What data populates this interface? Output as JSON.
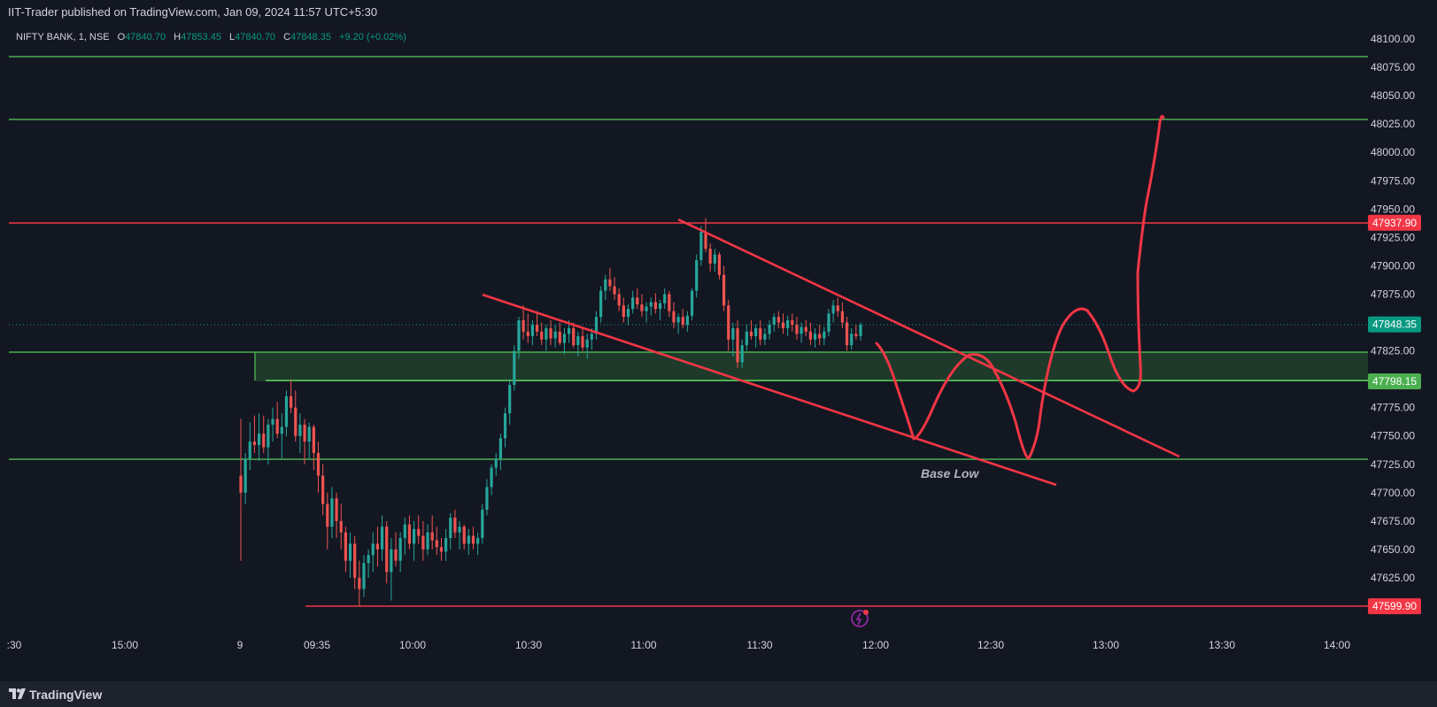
{
  "header": {
    "publisher": "IIT-Trader published on TradingView.com, Jan 09, 2024 11:57 UTC+5:30"
  },
  "legend": {
    "symbol": "NIFTY BANK, 1, NSE",
    "o_label": "O",
    "o_value": "47840.70",
    "h_label": "H",
    "h_value": "47853.45",
    "l_label": "L",
    "l_value": "47840.70",
    "c_label": "C",
    "c_value": "47848.35",
    "change": "+9.20 (+0.02%)"
  },
  "footer": {
    "brand": "TradingView"
  },
  "colors": {
    "background": "#131722",
    "up": "#26a69a",
    "down": "#ef5350",
    "support_line": "#4caf50",
    "resistance_line": "#f23645",
    "drawing": "#f23645",
    "zone_fill": "#1f3a2a"
  },
  "chart_data": {
    "type": "candlestick",
    "symbol": "NIFTY BANK",
    "interval": "1",
    "exchange": "NSE",
    "y_axis": {
      "range": [
        47575,
        48115
      ],
      "ticks": [
        "48100.00",
        "48075.00",
        "48050.00",
        "48025.00",
        "48000.00",
        "47975.00",
        "47950.00",
        "47925.00",
        "47900.00",
        "47875.00",
        "47850.00",
        "47825.00",
        "47800.00",
        "47775.00",
        "47750.00",
        "47725.00",
        "47700.00",
        "47675.00",
        "47650.00",
        "47625.00"
      ]
    },
    "x_axis": {
      "ticks": [
        ":30",
        "15:00",
        "9",
        "09:35",
        "10:00",
        "10:30",
        "11:00",
        "11:30",
        "12:00",
        "12:30",
        "13:00",
        "13:30",
        "14:00"
      ]
    },
    "price_labels": [
      {
        "value": "47937.90",
        "color": "#f23645"
      },
      {
        "value": "47848.35",
        "color": "#089981"
      },
      {
        "value": "47798.15",
        "color": "#4caf50"
      },
      {
        "value": "47599.90",
        "color": "#f23645"
      }
    ],
    "horizontal_levels": [
      {
        "price": 48088,
        "color": "green"
      },
      {
        "price": 48029,
        "color": "green"
      },
      {
        "price": 47937.9,
        "color": "red"
      },
      {
        "price": 47728,
        "color": "green"
      },
      {
        "price": 47599.9,
        "color": "red"
      }
    ],
    "zone": {
      "top": 47824,
      "bottom": 47799
    },
    "last_price": 47848.35,
    "candles": [
      [
        47715,
        47765,
        47640,
        47700
      ],
      [
        47700,
        47735,
        47690,
        47730
      ],
      [
        47730,
        47762,
        47720,
        47745
      ],
      [
        47745,
        47768,
        47735,
        47742
      ],
      [
        47742,
        47770,
        47728,
        47752
      ],
      [
        47752,
        47768,
        47735,
        47740
      ],
      [
        47740,
        47765,
        47725,
        47760
      ],
      [
        47760,
        47775,
        47745,
        47765
      ],
      [
        47765,
        47780,
        47748,
        47752
      ],
      [
        47752,
        47770,
        47730,
        47758
      ],
      [
        47758,
        47790,
        47750,
        47785
      ],
      [
        47785,
        47800,
        47770,
        47775
      ],
      [
        47775,
        47790,
        47745,
        47750
      ],
      [
        47750,
        47770,
        47735,
        47760
      ],
      [
        47760,
        47765,
        47725,
        47745
      ],
      [
        47745,
        47762,
        47730,
        47758
      ],
      [
        47758,
        47760,
        47720,
        47735
      ],
      [
        47735,
        47745,
        47700,
        47715
      ],
      [
        47715,
        47725,
        47680,
        47690
      ],
      [
        47690,
        47700,
        47650,
        47670
      ],
      [
        47670,
        47705,
        47660,
        47695
      ],
      [
        47695,
        47700,
        47660,
        47675
      ],
      [
        47675,
        47690,
        47650,
        47665
      ],
      [
        47665,
        47670,
        47630,
        47640
      ],
      [
        47640,
        47665,
        47625,
        47655
      ],
      [
        47655,
        47662,
        47615,
        47625
      ],
      [
        47625,
        47640,
        47600,
        47615
      ],
      [
        47615,
        47645,
        47608,
        47638
      ],
      [
        47638,
        47650,
        47625,
        47645
      ],
      [
        47645,
        47665,
        47630,
        47655
      ],
      [
        47655,
        47670,
        47635,
        47650
      ],
      [
        47650,
        47680,
        47640,
        47670
      ],
      [
        47670,
        47675,
        47620,
        47630
      ],
      [
        47630,
        47660,
        47605,
        47650
      ],
      [
        47650,
        47665,
        47635,
        47640
      ],
      [
        47640,
        47665,
        47630,
        47660
      ],
      [
        47660,
        47678,
        47645,
        47672
      ],
      [
        47672,
        47680,
        47650,
        47655
      ],
      [
        47655,
        47675,
        47640,
        47668
      ],
      [
        47668,
        47680,
        47655,
        47662
      ],
      [
        47662,
        47675,
        47640,
        47650
      ],
      [
        47650,
        47672,
        47645,
        47665
      ],
      [
        47665,
        47680,
        47650,
        47658
      ],
      [
        47658,
        47670,
        47645,
        47652
      ],
      [
        47652,
        47660,
        47640,
        47648
      ],
      [
        47648,
        47668,
        47640,
        47660
      ],
      [
        47660,
        47682,
        47650,
        47678
      ],
      [
        47678,
        47685,
        47660,
        47665
      ],
      [
        47665,
        47675,
        47650,
        47670
      ],
      [
        47670,
        47672,
        47650,
        47655
      ],
      [
        47655,
        47668,
        47645,
        47662
      ],
      [
        47662,
        47670,
        47650,
        47655
      ],
      [
        47655,
        47665,
        47645,
        47660
      ],
      [
        47660,
        47690,
        47655,
        47685
      ],
      [
        47685,
        47712,
        47680,
        47705
      ],
      [
        47705,
        47725,
        47698,
        47722
      ],
      [
        47722,
        47735,
        47715,
        47730
      ],
      [
        47730,
        47752,
        47720,
        47748
      ],
      [
        47748,
        47775,
        47740,
        47770
      ],
      [
        47770,
        47800,
        47760,
        47795
      ],
      [
        47795,
        47830,
        47790,
        47825
      ],
      [
        47825,
        47855,
        47818,
        47852
      ],
      [
        47852,
        47865,
        47835,
        47842
      ],
      [
        47842,
        47858,
        47832,
        47838
      ],
      [
        47838,
        47852,
        47830,
        47848
      ],
      [
        47848,
        47860,
        47838,
        47842
      ],
      [
        47842,
        47850,
        47830,
        47835
      ],
      [
        47835,
        47848,
        47825,
        47845
      ],
      [
        47845,
        47852,
        47830,
        47836
      ],
      [
        47836,
        47848,
        47828,
        47842
      ],
      [
        47842,
        47850,
        47830,
        47832
      ],
      [
        47832,
        47845,
        47822,
        47840
      ],
      [
        47840,
        47852,
        47832,
        47845
      ],
      [
        47845,
        47850,
        47828,
        47830
      ],
      [
        47830,
        47842,
        47820,
        47838
      ],
      [
        47838,
        47845,
        47825,
        47828
      ],
      [
        47828,
        47840,
        47818,
        47835
      ],
      [
        47835,
        47845,
        47826,
        47840
      ],
      [
        47840,
        47860,
        47835,
        47855
      ],
      [
        47855,
        47882,
        47850,
        47878
      ],
      [
        47878,
        47892,
        47870,
        47888
      ],
      [
        47888,
        47898,
        47878,
        47882
      ],
      [
        47882,
        47890,
        47870,
        47875
      ],
      [
        47875,
        47880,
        47860,
        47865
      ],
      [
        47865,
        47872,
        47850,
        47855
      ],
      [
        47855,
        47866,
        47848,
        47862
      ],
      [
        47862,
        47878,
        47858,
        47872
      ],
      [
        47872,
        47880,
        47862,
        47866
      ],
      [
        47866,
        47875,
        47855,
        47860
      ],
      [
        47860,
        47868,
        47850,
        47864
      ],
      [
        47864,
        47872,
        47856,
        47868
      ],
      [
        47868,
        47876,
        47858,
        47862
      ],
      [
        47862,
        47870,
        47852,
        47867
      ],
      [
        47867,
        47880,
        47862,
        47875
      ],
      [
        47875,
        47878,
        47855,
        47860
      ],
      [
        47860,
        47868,
        47845,
        47850
      ],
      [
        47850,
        47858,
        47840,
        47855
      ],
      [
        47855,
        47862,
        47845,
        47848
      ],
      [
        47848,
        47860,
        47842,
        47856
      ],
      [
        47856,
        47880,
        47852,
        47878
      ],
      [
        47878,
        47910,
        47872,
        47905
      ],
      [
        47905,
        47935,
        47900,
        47930
      ],
      [
        47930,
        47942,
        47912,
        47915
      ],
      [
        47915,
        47920,
        47895,
        47902
      ],
      [
        47902,
        47915,
        47895,
        47910
      ],
      [
        47910,
        47912,
        47888,
        47892
      ],
      [
        47892,
        47900,
        47860,
        47865
      ],
      [
        47865,
        47870,
        47825,
        47835
      ],
      [
        47835,
        47850,
        47820,
        47845
      ],
      [
        47845,
        47852,
        47810,
        47815
      ],
      [
        47815,
        47835,
        47810,
        47830
      ],
      [
        47830,
        47848,
        47825,
        47842
      ],
      [
        47842,
        47852,
        47835,
        47838
      ],
      [
        47838,
        47848,
        47828,
        47845
      ],
      [
        47845,
        47852,
        47830,
        47835
      ],
      [
        47835,
        47845,
        47830,
        47840
      ],
      [
        47840,
        47852,
        47835,
        47848
      ],
      [
        47848,
        47858,
        47842,
        47855
      ],
      [
        47855,
        47860,
        47845,
        47850
      ],
      [
        47850,
        47858,
        47840,
        47845
      ],
      [
        47845,
        47856,
        47838,
        47852
      ],
      [
        47852,
        47858,
        47842,
        47848
      ],
      [
        47848,
        47855,
        47835,
        47840
      ],
      [
        47840,
        47850,
        47832,
        47846
      ],
      [
        47846,
        47852,
        47838,
        47842
      ],
      [
        47842,
        47850,
        47830,
        47835
      ],
      [
        47835,
        47845,
        47828,
        47840
      ],
      [
        47840,
        47848,
        47830,
        47836
      ],
      [
        47836,
        47846,
        47830,
        47842
      ],
      [
        47842,
        47862,
        47838,
        47858
      ],
      [
        47858,
        47870,
        47850,
        47865
      ],
      [
        47865,
        47872,
        47855,
        47860
      ],
      [
        47860,
        47868,
        47845,
        47850
      ],
      [
        47850,
        47855,
        47825,
        47830
      ],
      [
        47830,
        47845,
        47826,
        47840
      ],
      [
        47840,
        47848,
        47835,
        47838
      ],
      [
        47838,
        47850,
        47834,
        47848
      ]
    ],
    "trendlines": [
      {
        "from": [
          2,
          "10:19"
        ],
        "note": "descending channel upper and lower lines"
      }
    ],
    "annotations": [
      "Base Low"
    ]
  }
}
